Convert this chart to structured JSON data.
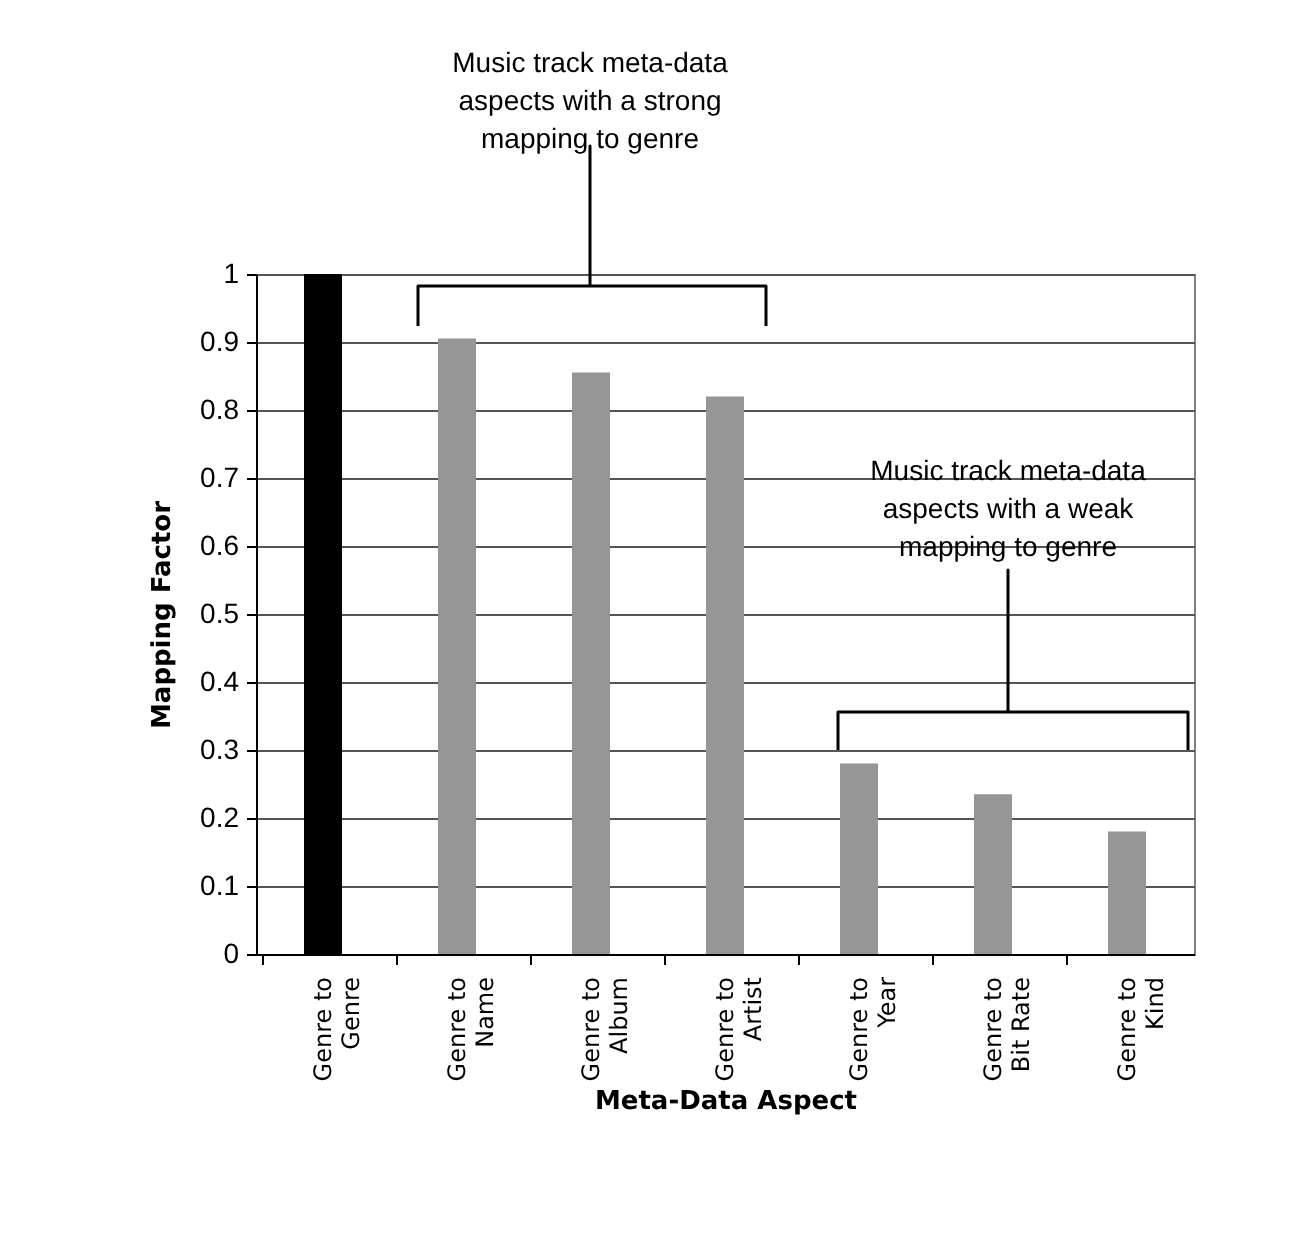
{
  "chart_data": {
    "type": "bar",
    "categories": [
      "Genre to Genre",
      "Genre to Name",
      "Genre to Album",
      "Genre to Artist",
      "Genre to Year",
      "Genre to Bit Rate",
      "Genre to Kind"
    ],
    "values": [
      1.0,
      0.905,
      0.855,
      0.82,
      0.28,
      0.235,
      0.18
    ],
    "colors": [
      "#000000",
      "#969696",
      "#969696",
      "#969696",
      "#969696",
      "#969696",
      "#969696"
    ],
    "xlabel": "Meta-Data Aspect",
    "ylabel": "Mapping Factor",
    "ylim": [
      0,
      1
    ],
    "yticks": [
      0,
      0.1,
      0.2,
      0.3,
      0.4,
      0.5,
      0.6,
      0.7,
      0.8,
      0.9,
      1
    ],
    "grid": "y",
    "annotations": [
      "Music track meta-data aspects with a strong mapping to genre",
      "Music track meta-data aspects with a weak mapping to genre"
    ]
  }
}
